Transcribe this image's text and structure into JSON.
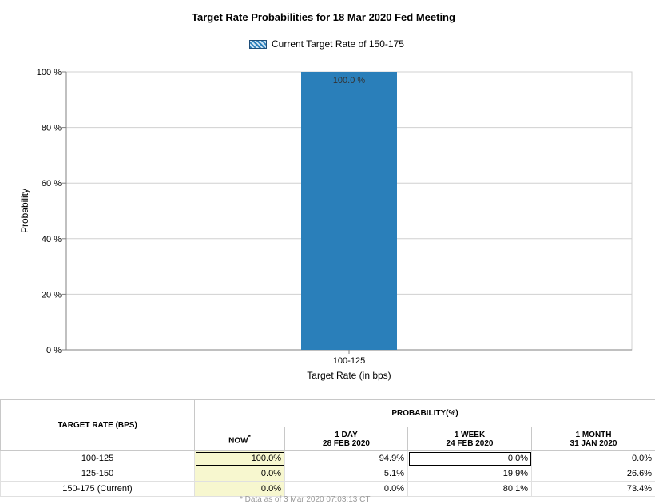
{
  "chart_data": {
    "type": "bar",
    "title": "Target Rate Probabilities for 18 Mar 2020 Fed Meeting",
    "legend": "Current Target Rate of 150-175",
    "categories": [
      "100-125"
    ],
    "values": [
      100.0
    ],
    "data_labels": [
      "100.0 %"
    ],
    "xlabel": "Target Rate (in bps)",
    "ylabel": "Probability",
    "ylim": [
      0,
      100
    ],
    "yticks": [
      0,
      20,
      40,
      60,
      80,
      100
    ],
    "ytick_labels": [
      "0 %",
      "20 %",
      "40 %",
      "60 %",
      "80 %",
      "100 %"
    ],
    "grid": true,
    "bar_color": "#2a7fba",
    "legend_placement": "top-center"
  },
  "table": {
    "target_header": "TARGET RATE (BPS)",
    "probability_header": "PROBABILITY(%)",
    "columns": [
      {
        "label": "NOW",
        "sup": "*",
        "date": ""
      },
      {
        "label": "1 DAY",
        "sup": "",
        "date": "28 FEB 2020"
      },
      {
        "label": "1 WEEK",
        "sup": "",
        "date": "24 FEB 2020"
      },
      {
        "label": "1 MONTH",
        "sup": "",
        "date": "31 JAN 2020"
      }
    ],
    "rows": [
      {
        "rate": "100-125",
        "values": [
          "100.0%",
          "94.9%",
          "0.0%",
          "0.0%"
        ]
      },
      {
        "rate": "125-150",
        "values": [
          "0.0%",
          "5.1%",
          "19.9%",
          "26.6%"
        ]
      },
      {
        "rate": "150-175 (Current)",
        "values": [
          "0.0%",
          "0.0%",
          "80.1%",
          "73.4%"
        ]
      }
    ]
  },
  "footnote": "* Data as of 3 Mar 2020 07:03:13 CT"
}
